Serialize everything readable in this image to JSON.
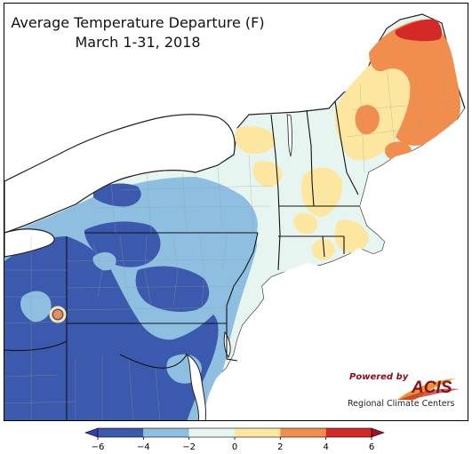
{
  "title": "Average Temperature Departure (F)",
  "subtitle": "March 1-31, 2018",
  "legend": {
    "ticks": [
      "−6",
      "−4",
      "−2",
      "0",
      "2",
      "4",
      "6"
    ],
    "bins": [
      {
        "from": -6,
        "to": -4,
        "color": "#3c5aad"
      },
      {
        "from": -4,
        "to": -2,
        "color": "#8ebfe0"
      },
      {
        "from": -2,
        "to": 0,
        "color": "#e6f5f0"
      },
      {
        "from": 0,
        "to": 2,
        "color": "#fde7a0"
      },
      {
        "from": 2,
        "to": 4,
        "color": "#f28e4d"
      },
      {
        "from": 4,
        "to": 6,
        "color": "#d42a27"
      }
    ],
    "under_color": "#3b3bb0",
    "over_color": "#9e1030"
  },
  "logo": {
    "powered_by": "Powered by",
    "name": "ACIS",
    "tagline": "Regional Climate Centers"
  },
  "colors": {
    "water": "#ffffff",
    "border": "#222222",
    "county_lines": "#9a9a9a"
  }
}
